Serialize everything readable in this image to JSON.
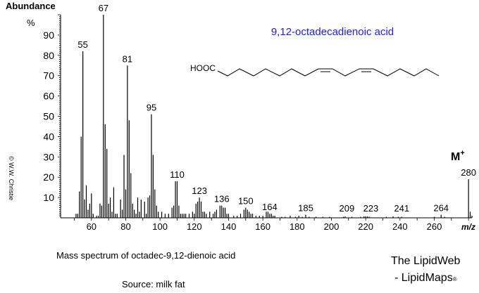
{
  "chart_data": {
    "type": "bar",
    "title": "9,12-octadecadienoic acid",
    "title_color": "#1a1aff",
    "xlabel": "m/z",
    "ylabel": "Abundance",
    "ylabel_unit": "%",
    "xlim": [
      42,
      282
    ],
    "ylim": [
      0,
      100
    ],
    "x_ticks": [
      60,
      80,
      100,
      120,
      140,
      160,
      180,
      200,
      220,
      240,
      260
    ],
    "y_ticks": [
      10,
      20,
      30,
      40,
      50,
      60,
      70,
      80,
      90
    ],
    "grid": false,
    "molecular_ion_label": "M",
    "molecular_ion_sup": "+",
    "structure_label": "HOOC",
    "peak_labels": [
      55,
      67,
      81,
      95,
      110,
      123,
      136,
      150,
      164,
      185,
      209,
      223,
      241,
      264,
      280
    ],
    "peaks": [
      [
        51,
        2
      ],
      [
        52,
        2
      ],
      [
        53,
        13
      ],
      [
        54,
        40
      ],
      [
        55,
        82
      ],
      [
        56,
        9
      ],
      [
        57,
        16
      ],
      [
        58,
        4
      ],
      [
        59,
        7
      ],
      [
        60,
        12
      ],
      [
        61,
        2
      ],
      [
        63,
        1
      ],
      [
        64,
        1
      ],
      [
        65,
        7
      ],
      [
        66,
        6
      ],
      [
        67,
        100
      ],
      [
        68,
        46
      ],
      [
        69,
        34
      ],
      [
        70,
        7
      ],
      [
        71,
        10
      ],
      [
        72,
        3
      ],
      [
        73,
        15
      ],
      [
        74,
        2
      ],
      [
        75,
        2
      ],
      [
        77,
        9
      ],
      [
        78,
        4
      ],
      [
        79,
        31
      ],
      [
        80,
        14
      ],
      [
        81,
        75
      ],
      [
        82,
        48
      ],
      [
        83,
        22
      ],
      [
        84,
        7
      ],
      [
        85,
        4
      ],
      [
        86,
        2
      ],
      [
        87,
        10
      ],
      [
        88,
        3
      ],
      [
        89,
        9
      ],
      [
        91,
        8
      ],
      [
        92,
        2
      ],
      [
        93,
        10
      ],
      [
        94,
        11
      ],
      [
        95,
        51
      ],
      [
        96,
        31
      ],
      [
        97,
        14
      ],
      [
        98,
        6
      ],
      [
        99,
        3
      ],
      [
        101,
        3
      ],
      [
        103,
        2
      ],
      [
        105,
        2
      ],
      [
        107,
        5
      ],
      [
        108,
        6
      ],
      [
        109,
        18
      ],
      [
        110,
        18
      ],
      [
        111,
        6
      ],
      [
        112,
        2
      ],
      [
        113,
        2
      ],
      [
        114,
        2
      ],
      [
        115,
        2
      ],
      [
        117,
        2
      ],
      [
        119,
        3
      ],
      [
        120,
        2
      ],
      [
        121,
        7
      ],
      [
        122,
        8
      ],
      [
        123,
        10
      ],
      [
        124,
        8
      ],
      [
        125,
        3
      ],
      [
        126,
        3
      ],
      [
        127,
        2
      ],
      [
        129,
        3
      ],
      [
        131,
        2
      ],
      [
        132,
        3
      ],
      [
        133,
        4
      ],
      [
        135,
        6
      ],
      [
        136,
        6
      ],
      [
        137,
        5
      ],
      [
        138,
        5
      ],
      [
        139,
        2
      ],
      [
        140,
        2
      ],
      [
        143,
        1
      ],
      [
        145,
        1
      ],
      [
        147,
        2
      ],
      [
        149,
        4
      ],
      [
        150,
        5
      ],
      [
        151,
        4
      ],
      [
        152,
        3
      ],
      [
        153,
        2
      ],
      [
        154,
        2
      ],
      [
        156,
        1
      ],
      [
        158,
        1
      ],
      [
        160,
        1
      ],
      [
        162,
        3
      ],
      [
        163,
        3
      ],
      [
        164,
        2
      ],
      [
        165,
        2
      ],
      [
        166,
        1
      ],
      [
        167,
        1
      ],
      [
        171,
        0.5
      ],
      [
        173,
        0.5
      ],
      [
        176,
        1
      ],
      [
        179,
        0.5
      ],
      [
        181,
        1
      ],
      [
        183,
        0.5
      ],
      [
        185,
        1.5
      ],
      [
        187,
        0.5
      ],
      [
        191,
        0.5
      ],
      [
        195,
        0.5
      ],
      [
        199,
        0.5
      ],
      [
        207,
        0.5
      ],
      [
        208,
        0.7
      ],
      [
        212,
        0.5
      ],
      [
        217,
        0.5
      ],
      [
        219,
        0.7
      ],
      [
        220,
        0.7
      ],
      [
        221,
        0.7
      ],
      [
        222,
        0.5
      ],
      [
        232,
        0.5
      ],
      [
        236,
        0.7
      ],
      [
        239,
        0.5
      ],
      [
        241,
        0.5
      ],
      [
        260,
        0.5
      ],
      [
        264,
        1.5
      ],
      [
        266,
        0.5
      ],
      [
        280,
        19
      ],
      [
        281,
        3
      ],
      [
        282,
        1
      ]
    ]
  },
  "copyright": "© W.W. Christie",
  "caption": "Mass spectrum of octadec-9,12-dienoic acid",
  "source": "Source:  milk fat",
  "brand_line1": "The LipidWeb",
  "brand_line2": "- LipidMaps",
  "brand_mark": "®"
}
